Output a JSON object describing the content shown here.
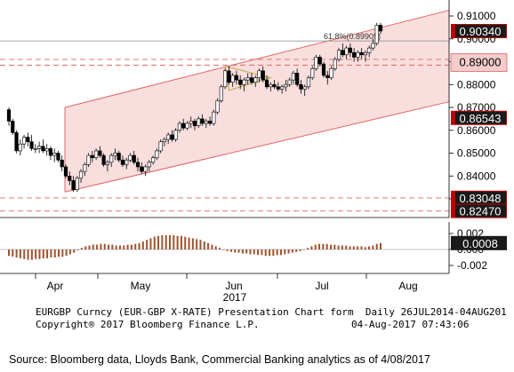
{
  "chart_data": [
    {
      "type": "candlestick",
      "panel": "price",
      "ylim": [
        0.822,
        0.912
      ],
      "yticks": [
        "0.91000",
        "0.90000",
        "0.89000",
        "0.88000",
        "0.87000",
        "0.86000",
        "0.85000",
        "0.84000",
        "0.83000"
      ],
      "x_tick_labels": [
        "Apr",
        "May",
        "Jun",
        "Jul",
        "Aug"
      ],
      "x_year_label": "2017",
      "colors": {
        "up": "#ffffff",
        "down": "#000000",
        "channel": "#e06666",
        "channel_fill": "#f9dede",
        "label_red": "#c00000",
        "label_pink": "#f4cccc"
      },
      "price_labels": [
        {
          "text": "0.90340",
          "value": 0.9034,
          "style": "dark"
        },
        {
          "text": "0.89000",
          "value": 0.89,
          "style": "pink"
        },
        {
          "text": "0.86543",
          "value": 0.86543,
          "style": "dark"
        },
        {
          "text": "0.83048",
          "value": 0.83048,
          "style": "dark"
        },
        {
          "text": "0.82470",
          "value": 0.8247,
          "style": "dark"
        }
      ],
      "fib_annotation": {
        "text": "61.8%(0.89909)",
        "value": 0.89909
      },
      "dashed_levels": [
        0.891,
        0.8885,
        0.8304,
        0.8247
      ],
      "series": [
        {
          "name": "EURGBP",
          "ohlc": [
            [
              0.869,
              0.87,
              0.862,
              0.864
            ],
            [
              0.864,
              0.865,
              0.858,
              0.859
            ],
            [
              0.859,
              0.86,
              0.85,
              0.851
            ],
            [
              0.851,
              0.856,
              0.849,
              0.854
            ],
            [
              0.854,
              0.858,
              0.852,
              0.857
            ],
            [
              0.857,
              0.859,
              0.853,
              0.855
            ],
            [
              0.855,
              0.858,
              0.851,
              0.852
            ],
            [
              0.852,
              0.854,
              0.85,
              0.852
            ],
            [
              0.852,
              0.855,
              0.85,
              0.853
            ],
            [
              0.853,
              0.856,
              0.85,
              0.851
            ],
            [
              0.851,
              0.854,
              0.849,
              0.852
            ],
            [
              0.852,
              0.853,
              0.847,
              0.849
            ],
            [
              0.849,
              0.852,
              0.846,
              0.85
            ],
            [
              0.85,
              0.851,
              0.846,
              0.847
            ],
            [
              0.847,
              0.849,
              0.842,
              0.844
            ],
            [
              0.844,
              0.845,
              0.839,
              0.84
            ],
            [
              0.84,
              0.842,
              0.836,
              0.838
            ],
            [
              0.838,
              0.84,
              0.833,
              0.834
            ],
            [
              0.834,
              0.84,
              0.833,
              0.839
            ],
            [
              0.839,
              0.843,
              0.837,
              0.842
            ],
            [
              0.842,
              0.846,
              0.84,
              0.845
            ],
            [
              0.845,
              0.85,
              0.844,
              0.849
            ],
            [
              0.849,
              0.851,
              0.846,
              0.848
            ],
            [
              0.848,
              0.852,
              0.847,
              0.851
            ],
            [
              0.851,
              0.853,
              0.848,
              0.849
            ],
            [
              0.849,
              0.85,
              0.844,
              0.845
            ],
            [
              0.845,
              0.847,
              0.842,
              0.846
            ],
            [
              0.846,
              0.85,
              0.844,
              0.849
            ],
            [
              0.849,
              0.852,
              0.847,
              0.85
            ],
            [
              0.85,
              0.851,
              0.846,
              0.847
            ],
            [
              0.847,
              0.849,
              0.844,
              0.845
            ],
            [
              0.845,
              0.848,
              0.843,
              0.847
            ],
            [
              0.847,
              0.85,
              0.846,
              0.849
            ],
            [
              0.849,
              0.851,
              0.845,
              0.846
            ],
            [
              0.846,
              0.848,
              0.842,
              0.844
            ],
            [
              0.844,
              0.846,
              0.841,
              0.842
            ],
            [
              0.842,
              0.845,
              0.84,
              0.844
            ],
            [
              0.844,
              0.847,
              0.842,
              0.846
            ],
            [
              0.846,
              0.849,
              0.845,
              0.848
            ],
            [
              0.848,
              0.852,
              0.847,
              0.851
            ],
            [
              0.851,
              0.856,
              0.85,
              0.855
            ],
            [
              0.855,
              0.857,
              0.853,
              0.856
            ],
            [
              0.856,
              0.859,
              0.854,
              0.858
            ],
            [
              0.858,
              0.86,
              0.855,
              0.856
            ],
            [
              0.856,
              0.861,
              0.855,
              0.86
            ],
            [
              0.86,
              0.864,
              0.859,
              0.863
            ],
            [
              0.863,
              0.865,
              0.86,
              0.861
            ],
            [
              0.861,
              0.864,
              0.86,
              0.863
            ],
            [
              0.863,
              0.866,
              0.861,
              0.864
            ],
            [
              0.864,
              0.865,
              0.86,
              0.862
            ],
            [
              0.862,
              0.866,
              0.861,
              0.865
            ],
            [
              0.865,
              0.867,
              0.862,
              0.863
            ],
            [
              0.863,
              0.865,
              0.861,
              0.864
            ],
            [
              0.864,
              0.866,
              0.862,
              0.863
            ],
            [
              0.863,
              0.869,
              0.862,
              0.868
            ],
            [
              0.868,
              0.874,
              0.867,
              0.873
            ],
            [
              0.873,
              0.88,
              0.872,
              0.879
            ],
            [
              0.879,
              0.887,
              0.878,
              0.886
            ],
            [
              0.886,
              0.888,
              0.88,
              0.881
            ],
            [
              0.881,
              0.885,
              0.879,
              0.884
            ],
            [
              0.884,
              0.886,
              0.88,
              0.882
            ],
            [
              0.882,
              0.884,
              0.878,
              0.88
            ],
            [
              0.88,
              0.883,
              0.877,
              0.882
            ],
            [
              0.882,
              0.885,
              0.88,
              0.883
            ],
            [
              0.883,
              0.885,
              0.88,
              0.881
            ],
            [
              0.881,
              0.884,
              0.879,
              0.883
            ],
            [
              0.883,
              0.887,
              0.881,
              0.886
            ],
            [
              0.886,
              0.888,
              0.881,
              0.882
            ],
            [
              0.882,
              0.884,
              0.878,
              0.879
            ],
            [
              0.879,
              0.881,
              0.877,
              0.88
            ],
            [
              0.88,
              0.882,
              0.878,
              0.879
            ],
            [
              0.879,
              0.881,
              0.877,
              0.878
            ],
            [
              0.878,
              0.88,
              0.876,
              0.879
            ],
            [
              0.879,
              0.882,
              0.877,
              0.88
            ],
            [
              0.88,
              0.883,
              0.879,
              0.882
            ],
            [
              0.882,
              0.886,
              0.88,
              0.885
            ],
            [
              0.885,
              0.887,
              0.879,
              0.88
            ],
            [
              0.88,
              0.882,
              0.876,
              0.878
            ],
            [
              0.878,
              0.88,
              0.875,
              0.879
            ],
            [
              0.879,
              0.884,
              0.878,
              0.883
            ],
            [
              0.883,
              0.888,
              0.882,
              0.887
            ],
            [
              0.887,
              0.893,
              0.886,
              0.892
            ],
            [
              0.892,
              0.893,
              0.888,
              0.889
            ],
            [
              0.889,
              0.89,
              0.883,
              0.884
            ],
            [
              0.884,
              0.886,
              0.88,
              0.883
            ],
            [
              0.883,
              0.888,
              0.882,
              0.887
            ],
            [
              0.887,
              0.892,
              0.886,
              0.891
            ],
            [
              0.891,
              0.896,
              0.89,
              0.895
            ],
            [
              0.895,
              0.898,
              0.892,
              0.893
            ],
            [
              0.893,
              0.897,
              0.891,
              0.896
            ],
            [
              0.896,
              0.898,
              0.892,
              0.894
            ],
            [
              0.894,
              0.896,
              0.89,
              0.892
            ],
            [
              0.892,
              0.895,
              0.89,
              0.894
            ],
            [
              0.894,
              0.896,
              0.891,
              0.893
            ],
            [
              0.893,
              0.895,
              0.89,
              0.894
            ],
            [
              0.894,
              0.897,
              0.892,
              0.896
            ],
            [
              0.896,
              0.9,
              0.895,
              0.898
            ],
            [
              0.898,
              0.907,
              0.897,
              0.906
            ],
            [
              0.906,
              0.907,
              0.902,
              0.9034
            ]
          ]
        }
      ]
    },
    {
      "type": "bar",
      "panel": "oscillator",
      "ylim": [
        -0.0025,
        0.0022
      ],
      "yticks": [
        "0.002",
        "0.000",
        "-0.002"
      ],
      "current_label": {
        "text": "0.0008",
        "value": 0.0008
      },
      "colors": {
        "bar": "#a0522d"
      },
      "values": [
        -0.0008,
        -0.0009,
        -0.001,
        -0.0011,
        -0.0012,
        -0.0013,
        -0.0013,
        -0.0012,
        -0.0012,
        -0.0011,
        -0.0011,
        -0.001,
        -0.001,
        -0.0009,
        -0.0009,
        -0.0008,
        -0.0006,
        -0.0004,
        -0.0001,
        0.0002,
        0.0004,
        0.0005,
        0.0006,
        0.0006,
        0.0007,
        0.0007,
        0.0006,
        0.0006,
        0.0005,
        0.0005,
        0.0005,
        0.0006,
        0.0006,
        0.0007,
        0.0008,
        0.001,
        0.0012,
        0.0014,
        0.0016,
        0.0017,
        0.0018,
        0.0018,
        0.0018,
        0.0018,
        0.0017,
        0.0017,
        0.0016,
        0.0015,
        0.0014,
        0.0013,
        0.0012,
        0.001,
        0.0008,
        0.0006,
        0.0004,
        0.0002,
        0.0,
        -0.0002,
        -0.0003,
        -0.0004,
        -0.0004,
        -0.0005,
        -0.0005,
        -0.0006,
        -0.0006,
        -0.0007,
        -0.0007,
        -0.0008,
        -0.0008,
        -0.0008,
        -0.0007,
        -0.0007,
        -0.0006,
        -0.0005,
        -0.0004,
        -0.0003,
        -0.0002,
        0.0,
        0.0002,
        0.0004,
        0.0006,
        0.0007,
        0.0007,
        0.0007,
        0.0006,
        0.0006,
        0.0005,
        0.0005,
        0.0005,
        0.0004,
        0.0004,
        0.0004,
        0.0004,
        0.0003,
        0.0004,
        0.0005,
        0.0007,
        0.0008
      ]
    }
  ],
  "footer": {
    "line1": "EURGBP Curncy (EUR-GBP X-RATE) Presentation Chart form  Daily 26JUL2014-04AUG201",
    "line2_left": "Copyright® 2017 Bloomberg Finance L.P.",
    "line2_right": "04-Aug-2017 07:43:06",
    "source": "Source: Bloomberg data, Lloyds Bank, Commercial Banking analytics as of 4/08/2017"
  }
}
